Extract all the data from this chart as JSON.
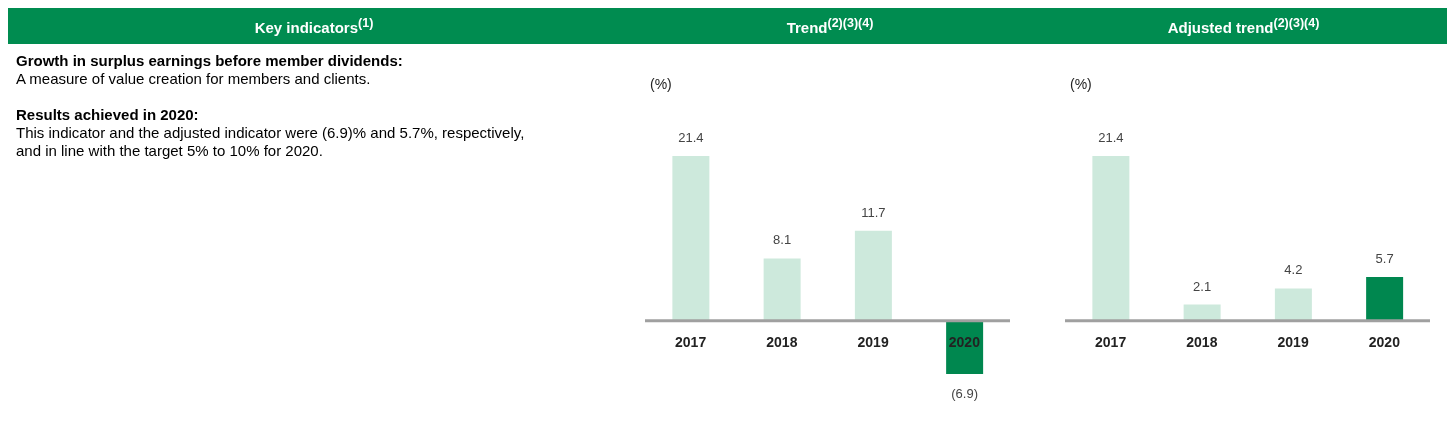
{
  "chart_data": [
    {
      "type": "other",
      "title": "Key indicators$^{(1)}$",
      "annotations": [
        "Growth in surplus earnings before member dividends:",
        "A measure of value creation for members and clients.",
        "Results achieved in 2020:",
        "This indicator and the adjusted indicator were (6.9)% and 5.7%, respectively, and in line with the target 5% to 10% for 2020."
      ]
    },
    {
      "type": "bar",
      "title": "Trend$^{(2)(3)(4)}$",
      "ylabel": "(%)",
      "categories": [
        "2017",
        "2018",
        "2019",
        "2020"
      ],
      "values": [
        21.4,
        8.1,
        11.7,
        -6.9
      ],
      "colors": [
        "#cde9dc",
        "#cde9dc",
        "#cde9dc",
        "#00874f"
      ],
      "value_labels": [
        "21.4",
        "8.1",
        "11.7",
        "(6.9)"
      ],
      "tick_labels": "x"
    },
    {
      "type": "bar",
      "title": "Adjusted trend$^{(2)(3)(4)}$",
      "ylabel": "(%)",
      "categories": [
        "2017",
        "2018",
        "2019",
        "2020"
      ],
      "values": [
        21.4,
        2.1,
        4.2,
        5.7
      ],
      "colors": [
        "#cde9dc",
        "#cde9dc",
        "#cde9dc",
        "#00874f"
      ],
      "value_labels": [
        "21.4",
        "2.1",
        "4.2",
        "5.7"
      ],
      "tick_labels": "x"
    }
  ]
}
